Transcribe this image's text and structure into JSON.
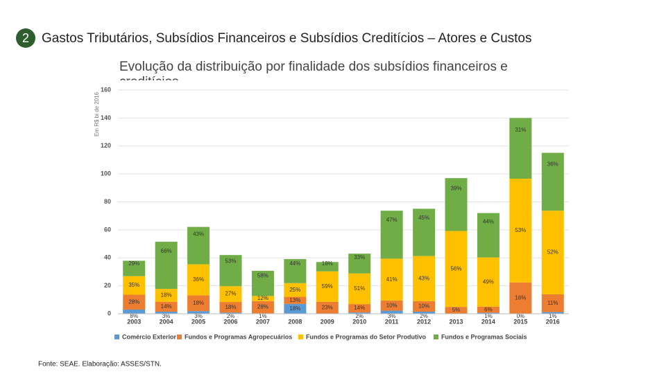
{
  "slide": {
    "number": "2",
    "title": "Gastos Tributários, Subsídios Financeiros e Subsídios Creditícios – Atores e Custos",
    "source": "Fonte: SEAE. Elaboração: ASSES/STN."
  },
  "chart_data": {
    "type": "stacked_bar",
    "title": "Evolução da distribuição por finalidade dos subsídios financeiros e creditícios",
    "y_label": "Em R$ bi de 2016",
    "categories": [
      "2003",
      "2004",
      "2005",
      "2006",
      "2007",
      "2008",
      "2009",
      "2010",
      "2011",
      "2012",
      "2013",
      "2014",
      "2015",
      "2016"
    ],
    "series": [
      {
        "name": "Comércio Exterior",
        "color": "#5b9bd5",
        "values": [
          3.0,
          1.5,
          1.9,
          0.8,
          0.3,
          7.0,
          null,
          0.9,
          2.2,
          1.5,
          null,
          0.7,
          0,
          1.2
        ],
        "share_labels": [
          "8%",
          "3%",
          "3%",
          "2%",
          "1%",
          "18%",
          null,
          "2%",
          "3%",
          "2%",
          null,
          "1%",
          "0%",
          "1%"
        ]
      },
      {
        "name": "Fundos e Programas Agropecuários",
        "color": "#ed7d31",
        "values": [
          10.6,
          7.1,
          11.2,
          7.6,
          8.7,
          5.1,
          8.5,
          6.0,
          7.3,
          7.5,
          4.9,
          4.3,
          22.4,
          12.7
        ],
        "share_labels": [
          "28%",
          "14%",
          "18%",
          "18%",
          "28%",
          "13%",
          "23%",
          "14%",
          "10%",
          "10%",
          "5%",
          "6%",
          "16%",
          "11%"
        ]
      },
      {
        "name": "Fundos e Programas do Setor Produtivo",
        "color": "#ffc000",
        "values": [
          13.3,
          9.2,
          22.3,
          11.3,
          3.7,
          9.8,
          21.8,
          21.9,
          29.9,
          32.3,
          54.3,
          35.3,
          74.2,
          59.8
        ],
        "share_labels": [
          "35%",
          "18%",
          "36%",
          "27%",
          "12%",
          "25%",
          "59%",
          "51%",
          "41%",
          "43%",
          "56%",
          "49%",
          "53%",
          "52%"
        ]
      },
      {
        "name": "Fundos e Programas Sociais",
        "color": "#70ad47",
        "values": [
          11.0,
          33.7,
          26.7,
          22.3,
          18.0,
          17.2,
          6.7,
          14.2,
          34.3,
          33.8,
          37.8,
          31.7,
          43.4,
          41.4
        ],
        "share_labels": [
          "29%",
          "66%",
          "43%",
          "53%",
          "58%",
          "44%",
          "18%",
          "33%",
          "47%",
          "45%",
          "39%",
          "44%",
          "31%",
          "36%"
        ]
      }
    ],
    "ylim": [
      0,
      160
    ],
    "yticks": [
      0,
      20,
      40,
      60,
      80,
      100,
      120,
      140,
      160
    ],
    "grid": true,
    "legend": "bottom"
  }
}
